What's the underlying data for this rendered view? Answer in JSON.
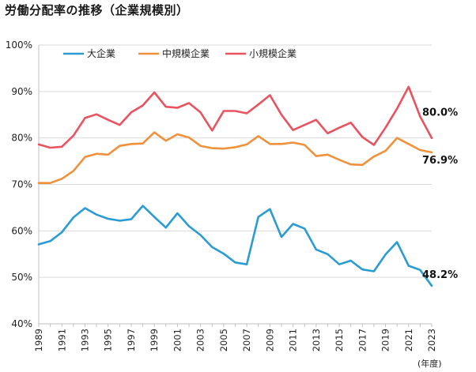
{
  "page": {
    "title": "労働分配率の推移（企業規模別）",
    "unit": "(年度)"
  },
  "chart_data": {
    "type": "line",
    "title": "労働分配率の推移（企業規模別）",
    "xlabel": "(年度)",
    "ylabel": "",
    "ylim": [
      40,
      100
    ],
    "yticks": [
      "100%",
      "90%",
      "80%",
      "70%",
      "60%",
      "50%",
      "40%"
    ],
    "ytick_values": [
      100,
      90,
      80,
      70,
      60,
      50,
      40
    ],
    "x": [
      1989,
      1990,
      1991,
      1992,
      1993,
      1994,
      1995,
      1996,
      1997,
      1998,
      1999,
      2000,
      2001,
      2002,
      2003,
      2004,
      2005,
      2006,
      2007,
      2008,
      2009,
      2010,
      2011,
      2012,
      2013,
      2014,
      2015,
      2016,
      2017,
      2018,
      2019,
      2020,
      2021,
      2022,
      2023
    ],
    "xtick_labels": [
      "1989",
      "1991",
      "1993",
      "1995",
      "1997",
      "1999",
      "2001",
      "2003",
      "2005",
      "2007",
      "2009",
      "2011",
      "2013",
      "2015",
      "2017",
      "2019",
      "2021",
      "2023"
    ],
    "grid": "horizontal",
    "legend": "top-left",
    "series": [
      {
        "name": "大企業",
        "color": "#2b9bd3",
        "values": [
          57.1,
          57.8,
          59.7,
          62.9,
          64.9,
          63.5,
          62.6,
          62.2,
          62.5,
          65.4,
          63.0,
          60.7,
          63.8,
          61.0,
          59.1,
          56.5,
          55.1,
          53.2,
          52.8,
          63.0,
          64.7,
          58.7,
          61.5,
          60.5,
          56.0,
          55.0,
          52.8,
          53.6,
          51.7,
          51.3,
          54.9,
          57.6,
          52.5,
          51.6,
          48.2
        ],
        "end_label": "48.2%"
      },
      {
        "name": "中規模企業",
        "color": "#f0913c",
        "values": [
          70.3,
          70.3,
          71.2,
          72.9,
          75.9,
          76.6,
          76.4,
          78.3,
          78.7,
          78.8,
          81.2,
          79.4,
          80.8,
          80.1,
          78.3,
          77.8,
          77.7,
          78.0,
          78.6,
          80.4,
          78.7,
          78.7,
          79.0,
          78.5,
          76.1,
          76.4,
          75.3,
          74.3,
          74.2,
          76.0,
          77.2,
          80.0,
          78.7,
          77.4,
          76.9
        ],
        "end_label": "76.9%"
      },
      {
        "name": "小規模企業",
        "color": "#e8535f",
        "values": [
          78.6,
          77.9,
          78.1,
          80.5,
          84.3,
          85.1,
          83.9,
          82.8,
          85.5,
          87.0,
          89.8,
          86.7,
          86.5,
          87.5,
          85.5,
          81.6,
          85.8,
          85.8,
          85.3,
          87.2,
          89.2,
          85.0,
          81.7,
          82.8,
          83.9,
          81.0,
          82.2,
          83.3,
          80.2,
          78.5,
          82.2,
          86.3,
          91.0,
          84.6,
          80.0
        ],
        "end_label": "80.0%"
      }
    ]
  }
}
